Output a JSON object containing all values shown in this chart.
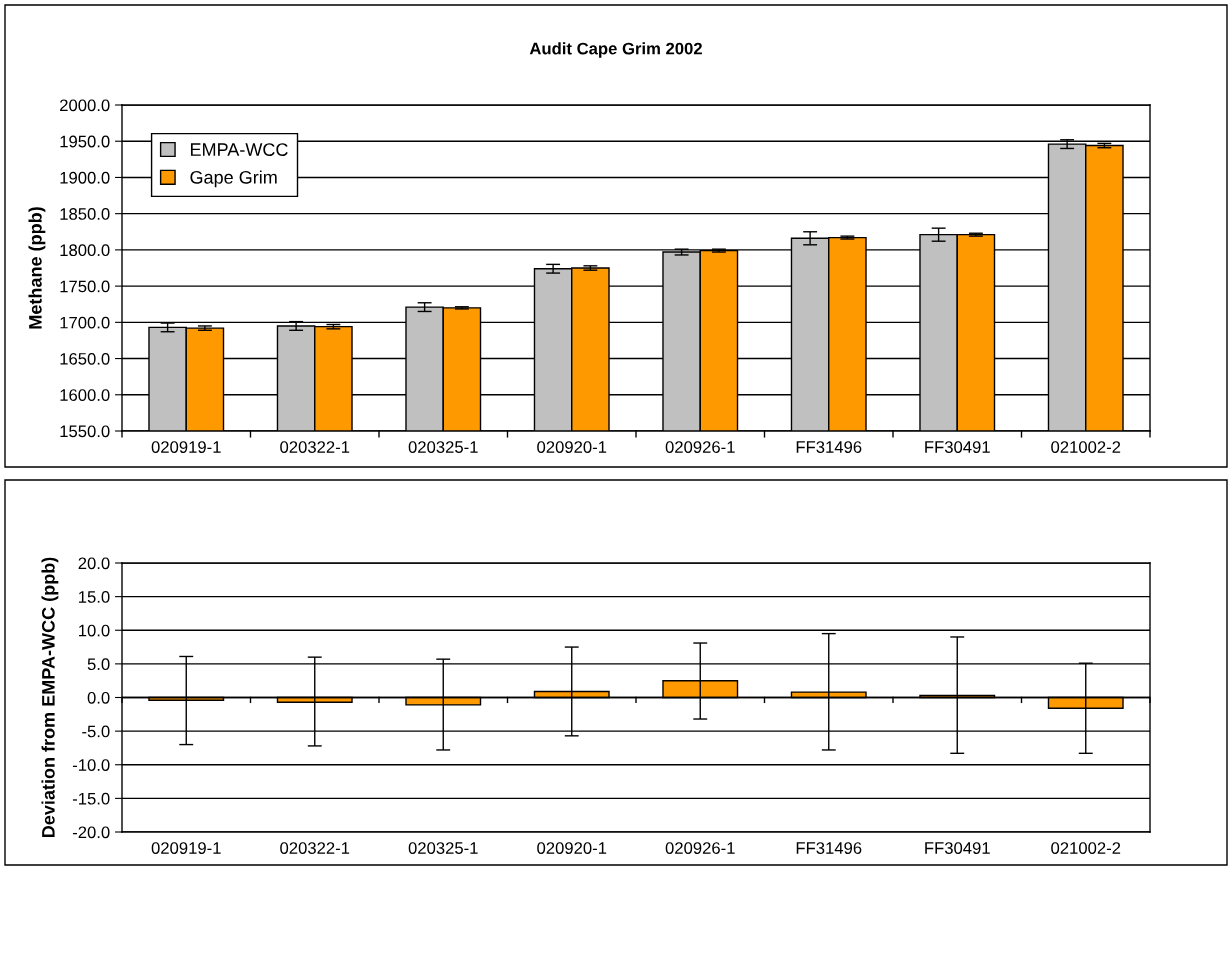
{
  "chart_data": [
    {
      "type": "bar",
      "title": "Audit Cape Grim 2002",
      "ylabel": "Methane (ppb)",
      "categories": [
        "020919-1",
        "020322-1",
        "020325-1",
        "020920-1",
        "020926-1",
        "FF31496",
        "FF30491",
        "021002-2"
      ],
      "series": [
        {
          "name": "EMPA-WCC",
          "color": "#c0c0c0",
          "values": [
            1693,
            1695,
            1721,
            1774,
            1797,
            1816,
            1821,
            1946
          ],
          "errors": [
            6,
            6,
            6,
            6,
            4,
            9,
            9,
            6
          ]
        },
        {
          "name": "Gape Grim",
          "color": "#ff9900",
          "values": [
            1692,
            1694,
            1720,
            1775,
            1799,
            1817,
            1821,
            1944
          ],
          "errors": [
            3,
            3,
            1.5,
            3,
            2,
            2,
            2,
            3
          ]
        }
      ],
      "ylim": [
        1550,
        2000
      ],
      "yticks": [
        {
          "value": 1550,
          "label": "1550.0"
        },
        {
          "value": 1600,
          "label": "1600.0"
        },
        {
          "value": 1650,
          "label": "1650.0"
        },
        {
          "value": 1700,
          "label": "1700.0"
        },
        {
          "value": 1750,
          "label": "1750.0"
        },
        {
          "value": 1800,
          "label": "1800.0"
        },
        {
          "value": 1850,
          "label": "1850.0"
        },
        {
          "value": 1900,
          "label": "1900.0"
        },
        {
          "value": 1950,
          "label": "1950.0"
        },
        {
          "value": 2000,
          "label": "2000.0"
        }
      ],
      "grid": "y",
      "legend": "top left"
    },
    {
      "type": "bar",
      "ylabel": "Deviation from EMPA-WCC (ppb)",
      "categories": [
        "020919-1",
        "020322-1",
        "020325-1",
        "020920-1",
        "020926-1",
        "FF31496",
        "FF30491",
        "021002-2"
      ],
      "series": [
        {
          "color": "#ff9900",
          "values": [
            -0.4,
            -0.7,
            -1.1,
            0.9,
            2.5,
            0.8,
            0.3,
            -1.6
          ],
          "errors": [
            [
              -7.0,
              6.1
            ],
            [
              -7.2,
              6.0
            ],
            [
              -7.8,
              5.7
            ],
            [
              -5.7,
              7.5
            ],
            [
              -3.2,
              8.1
            ],
            [
              -7.8,
              9.5
            ],
            [
              -8.3,
              9.0
            ],
            [
              -8.3,
              5.1
            ]
          ]
        }
      ],
      "ylim": [
        -20,
        20
      ],
      "yticks": [
        {
          "value": -20,
          "label": "-20.0"
        },
        {
          "value": -15,
          "label": "-15.0"
        },
        {
          "value": -10,
          "label": "-10.0"
        },
        {
          "value": -5,
          "label": "-5.0"
        },
        {
          "value": 0,
          "label": "0.0"
        },
        {
          "value": 5,
          "label": "5.0"
        },
        {
          "value": 10,
          "label": "10.0"
        },
        {
          "value": 15,
          "label": "15.0"
        },
        {
          "value": 20,
          "label": "20.0"
        }
      ],
      "grid": "y",
      "legend": false
    }
  ]
}
